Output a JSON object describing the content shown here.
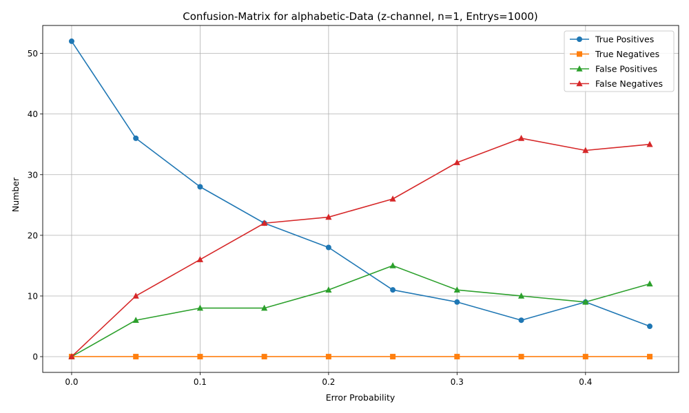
{
  "chart_data": {
    "type": "line",
    "title": "Confusion-Matrix for alphabetic-Data (z-channel, n=1, Entrys=1000)",
    "xlabel": "Error Probability",
    "ylabel": "Number",
    "x": [
      0.0,
      0.05,
      0.1,
      0.15,
      0.2,
      0.25,
      0.3,
      0.35,
      0.4,
      0.45
    ],
    "xlim": [
      -0.0225,
      0.4725
    ],
    "ylim": [
      -2.6,
      54.6
    ],
    "xticks": [
      0.0,
      0.1,
      0.2,
      0.3,
      0.4
    ],
    "xtick_labels": [
      "0.0",
      "0.1",
      "0.2",
      "0.3",
      "0.4"
    ],
    "yticks": [
      0,
      10,
      20,
      30,
      40,
      50
    ],
    "ytick_labels": [
      "0",
      "10",
      "20",
      "30",
      "40",
      "50"
    ],
    "grid": true,
    "legend_position": "top-right",
    "series": [
      {
        "name": "True Positives",
        "color": "#1f77b4",
        "marker": "circle",
        "values": [
          52,
          36,
          28,
          22,
          18,
          11,
          9,
          6,
          9,
          5
        ]
      },
      {
        "name": "True Negatives",
        "color": "#ff7f0e",
        "marker": "square",
        "values": [
          0,
          0,
          0,
          0,
          0,
          0,
          0,
          0,
          0,
          0
        ]
      },
      {
        "name": "False Positives",
        "color": "#2ca02c",
        "marker": "triangle",
        "values": [
          0,
          6,
          8,
          8,
          11,
          15,
          11,
          10,
          9,
          12
        ]
      },
      {
        "name": "False Negatives",
        "color": "#d62728",
        "marker": "triangle",
        "values": [
          0,
          10,
          16,
          22,
          23,
          26,
          32,
          36,
          34,
          35
        ]
      }
    ]
  }
}
